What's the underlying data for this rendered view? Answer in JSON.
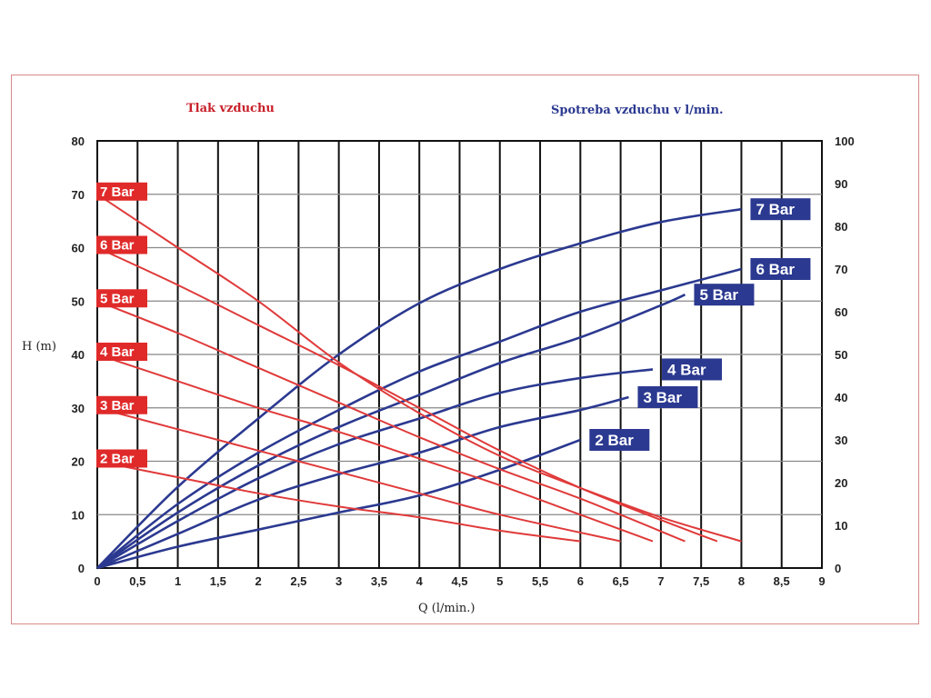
{
  "chart_data": {
    "type": "line",
    "left_header": "Tlak vzduchu",
    "right_header": "Spotreba vzduchu v l/min.",
    "xlabel": "Q (l/min.)",
    "ylabel": "H (m)",
    "xlim": [
      0,
      9
    ],
    "ylim": [
      0,
      80
    ],
    "y2lim": [
      0,
      100
    ],
    "x_ticks": [
      "0",
      "0,5",
      "1",
      "1,5",
      "2",
      "2,5",
      "3",
      "3,5",
      "4",
      "4,5",
      "5",
      "5,5",
      "6",
      "6,5",
      "7",
      "7,5",
      "8",
      "8,5",
      "9"
    ],
    "y_ticks": [
      "0",
      "10",
      "20",
      "30",
      "40",
      "50",
      "60",
      "70",
      "80"
    ],
    "y2_ticks": [
      "0",
      "10",
      "20",
      "30",
      "40",
      "50",
      "60",
      "70",
      "80",
      "90",
      "100"
    ],
    "grid": true,
    "colors": {
      "pressure": "#e03a3a",
      "consumption": "#2b3990",
      "label_red": "#e02a2a",
      "label_blue": "#2b3990"
    },
    "pressure_series": [
      {
        "name": "2 Bar",
        "axis": "left",
        "x": [
          0,
          1,
          2,
          3,
          4,
          5,
          6
        ],
        "y": [
          20,
          17,
          14,
          11.5,
          9.5,
          7,
          5
        ]
      },
      {
        "name": "3 Bar",
        "axis": "left",
        "x": [
          0,
          1,
          2,
          3,
          4,
          5,
          6.5
        ],
        "y": [
          30,
          26,
          22,
          18,
          14,
          10,
          5
        ]
      },
      {
        "name": "4 Bar",
        "axis": "left",
        "x": [
          0,
          1,
          2,
          3,
          4,
          5,
          6,
          6.9
        ],
        "y": [
          40,
          35,
          30,
          25.5,
          20.5,
          15.5,
          10,
          5
        ]
      },
      {
        "name": "5 Bar",
        "axis": "left",
        "x": [
          0,
          1,
          2,
          3,
          4,
          5,
          6,
          7.3
        ],
        "y": [
          50,
          44,
          37.5,
          31,
          24.5,
          18.5,
          13,
          5
        ]
      },
      {
        "name": "6 Bar",
        "axis": "left",
        "x": [
          0,
          1,
          2,
          3,
          4,
          5,
          6,
          7,
          7.7
        ],
        "y": [
          60,
          53,
          45.5,
          38,
          30,
          22,
          15,
          9,
          5
        ]
      },
      {
        "name": "7 Bar",
        "axis": "left",
        "x": [
          0,
          1,
          2,
          3,
          4,
          5,
          6,
          7,
          8
        ],
        "y": [
          70,
          60,
          50,
          38.5,
          29,
          21,
          15,
          9.5,
          5
        ]
      }
    ],
    "consumption_series": [
      {
        "name": "2 Bar",
        "axis": "right",
        "x": [
          0,
          1,
          2,
          3,
          4,
          5,
          6
        ],
        "y": [
          0,
          5,
          9,
          13,
          17,
          23,
          30
        ]
      },
      {
        "name": "3 Bar",
        "axis": "right",
        "x": [
          0,
          1,
          2,
          3,
          4,
          5,
          6,
          6.6
        ],
        "y": [
          0,
          8,
          16,
          22,
          27,
          33,
          37,
          40
        ]
      },
      {
        "name": "4 Bar",
        "axis": "right",
        "x": [
          0,
          1,
          2,
          3,
          4,
          5,
          6,
          6.9
        ],
        "y": [
          0,
          11,
          21,
          29,
          35,
          41,
          44.5,
          46.5
        ]
      },
      {
        "name": "5 Bar",
        "axis": "right",
        "x": [
          0,
          1,
          2,
          3,
          4,
          5,
          6,
          7,
          7.3
        ],
        "y": [
          0,
          13,
          24,
          33,
          40.5,
          48,
          54,
          61.5,
          64
        ]
      },
      {
        "name": "6 Bar",
        "axis": "right",
        "x": [
          0,
          1,
          2,
          3,
          4,
          5,
          6,
          7,
          8
        ],
        "y": [
          0,
          15,
          27,
          37,
          46,
          53,
          60,
          65,
          70
        ]
      },
      {
        "name": "7 Bar",
        "axis": "right",
        "x": [
          0,
          1,
          2,
          3,
          4,
          5,
          6,
          7,
          8
        ],
        "y": [
          0,
          19,
          35,
          50,
          62,
          70,
          76,
          81,
          84
        ]
      }
    ]
  }
}
